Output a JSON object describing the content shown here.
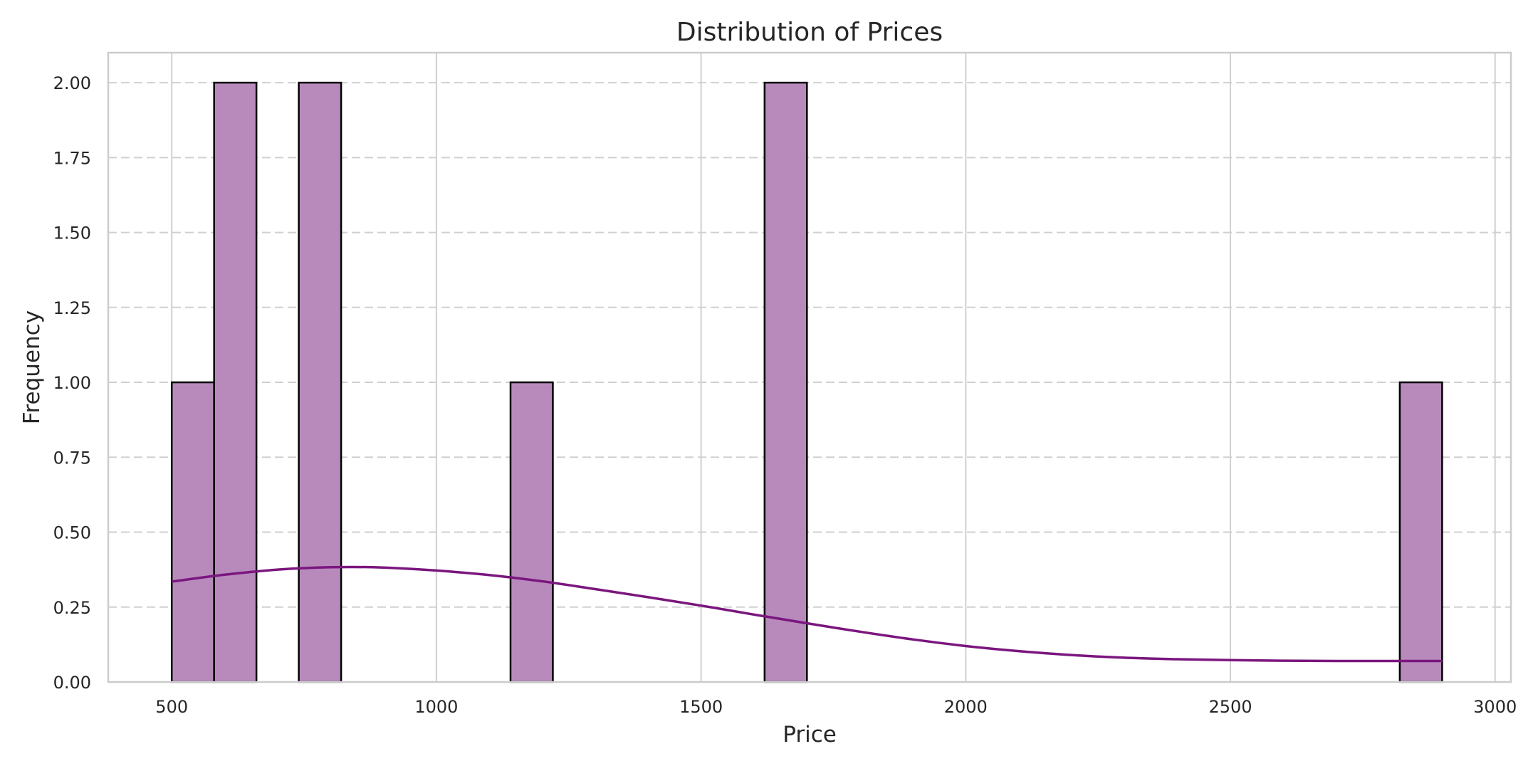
{
  "chart_data": {
    "type": "bar",
    "title": "Distribution of Prices",
    "xlabel": "Price",
    "ylabel": "Frequency",
    "xlim": [
      380,
      3030
    ],
    "ylim": [
      0,
      2.1
    ],
    "x_ticks": [
      500,
      1000,
      1500,
      2000,
      2500,
      3000
    ],
    "x_tick_labels": [
      "500",
      "1000",
      "1500",
      "2000",
      "2500",
      "3000"
    ],
    "y_ticks": [
      0,
      0.25,
      0.5,
      0.75,
      1.0,
      1.25,
      1.5,
      1.75,
      2.0
    ],
    "y_tick_labels": [
      "0.00",
      "0.25",
      "0.50",
      "0.75",
      "1.00",
      "1.25",
      "1.50",
      "1.75",
      "2.00"
    ],
    "grid": true,
    "bin_width": 80,
    "bins": [
      {
        "x0": 500,
        "x1": 580,
        "count": 1
      },
      {
        "x0": 580,
        "x1": 660,
        "count": 2
      },
      {
        "x0": 740,
        "x1": 820,
        "count": 2
      },
      {
        "x0": 1140,
        "x1": 1220,
        "count": 1
      },
      {
        "x0": 1620,
        "x1": 1700,
        "count": 2
      },
      {
        "x0": 2820,
        "x1": 2900,
        "count": 1
      }
    ],
    "kde": {
      "x": [
        500,
        600,
        700,
        800,
        900,
        1000,
        1100,
        1200,
        1300,
        1400,
        1500,
        1600,
        1700,
        1800,
        1900,
        2000,
        2100,
        2200,
        2300,
        2400,
        2500,
        2600,
        2700,
        2800,
        2900
      ],
      "y": [
        0.335,
        0.358,
        0.375,
        0.383,
        0.382,
        0.372,
        0.357,
        0.336,
        0.31,
        0.283,
        0.255,
        0.225,
        0.196,
        0.168,
        0.142,
        0.12,
        0.103,
        0.09,
        0.081,
        0.076,
        0.073,
        0.071,
        0.07,
        0.07,
        0.07
      ]
    },
    "colors": {
      "bar_fill": "#b88abc",
      "bar_edge": "#000000",
      "kde_line": "#7b167f",
      "grid": "#d0d0d0",
      "frame": "#cccccc",
      "text": "#262626"
    }
  }
}
